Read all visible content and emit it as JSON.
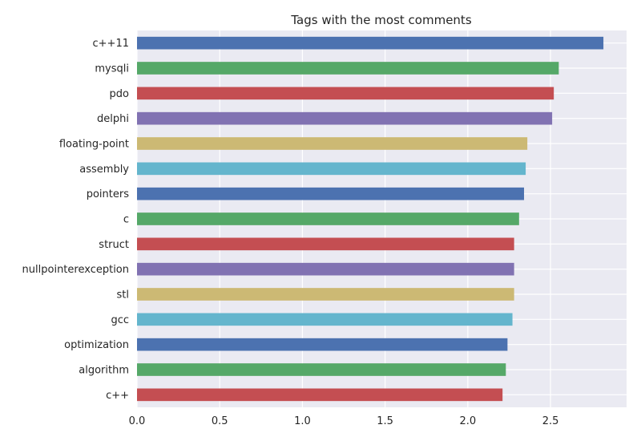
{
  "chart_data": {
    "type": "bar",
    "orientation": "horizontal",
    "title": "Tags with the most comments",
    "xlabel": "",
    "ylabel": "",
    "xlim": [
      0,
      2.96
    ],
    "grid": true,
    "x_ticks": [
      "0.0",
      "0.5",
      "1.0",
      "1.5",
      "2.0",
      "2.5"
    ],
    "x_tick_values": [
      0,
      0.5,
      1.0,
      1.5,
      2.0,
      2.5
    ],
    "categories": [
      "c++11",
      "mysqli",
      "pdo",
      "delphi",
      "floating-point",
      "assembly",
      "pointers",
      "c",
      "struct",
      "nullpointerexception",
      "stl",
      "gcc",
      "optimization",
      "algorithm",
      "c++"
    ],
    "values": [
      2.82,
      2.55,
      2.52,
      2.51,
      2.36,
      2.35,
      2.34,
      2.31,
      2.28,
      2.28,
      2.28,
      2.27,
      2.24,
      2.23,
      2.21
    ],
    "colors": [
      "#4c72b0",
      "#55a868",
      "#c44e52",
      "#8172b2",
      "#ccb974",
      "#64b5cd",
      "#4c72b0",
      "#55a868",
      "#c44e52",
      "#8172b2",
      "#ccb974",
      "#64b5cd",
      "#4c72b0",
      "#55a868",
      "#c44e52"
    ],
    "background_color": "#eaeaf2",
    "grid_color": "#ffffff"
  }
}
